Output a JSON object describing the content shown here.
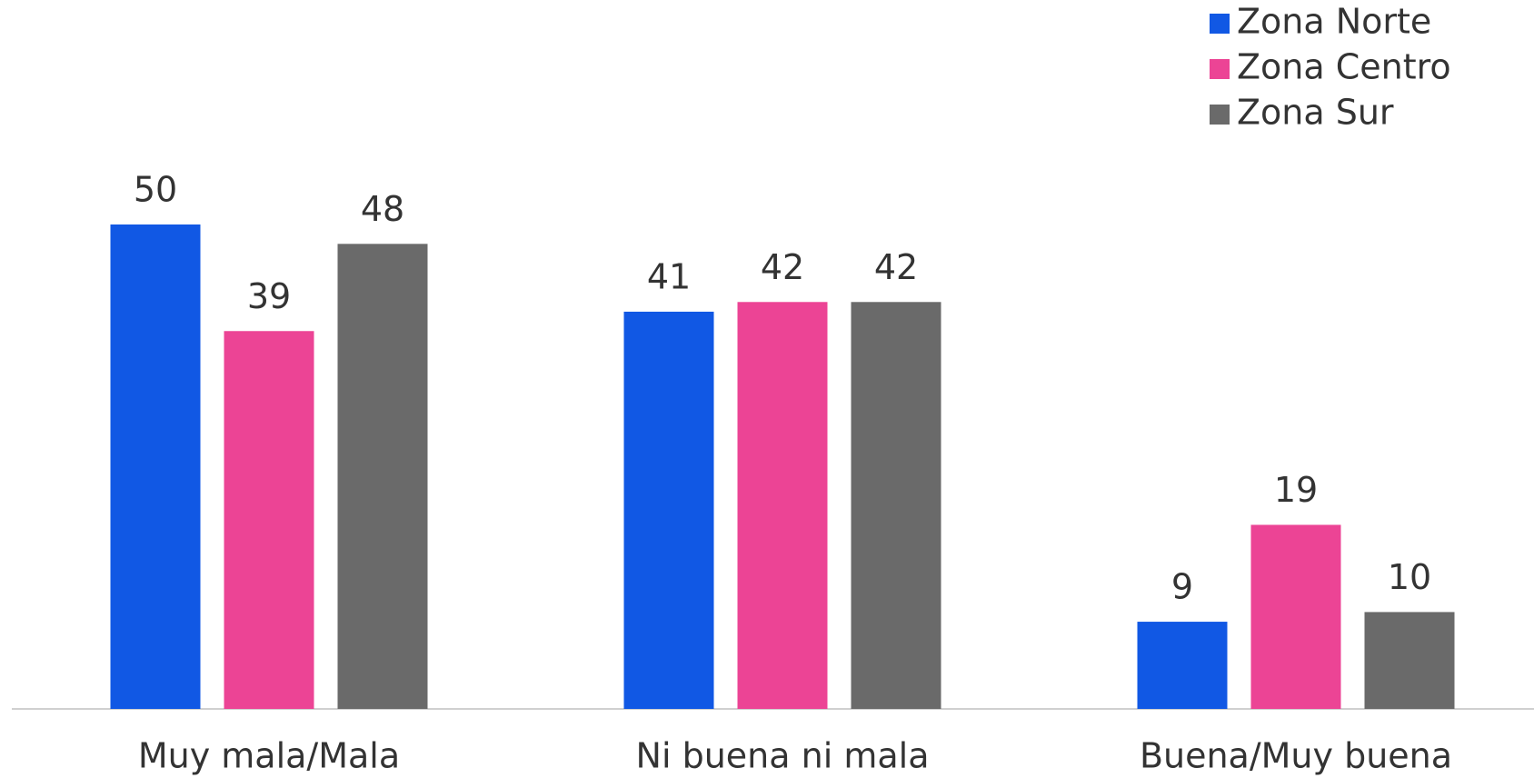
{
  "chart_data": {
    "type": "bar",
    "categories": [
      "Muy mala/Mala",
      "Ni buena ni mala",
      "Buena/Muy buena"
    ],
    "series": [
      {
        "name": "Zona Norte",
        "color": "#1158e4",
        "values": [
          50,
          41,
          9
        ]
      },
      {
        "name": "Zona Centro",
        "color": "#ec4495",
        "values": [
          39,
          42,
          19
        ]
      },
      {
        "name": "Zona Sur",
        "color": "#6a6a6a",
        "values": [
          48,
          42,
          10
        ]
      }
    ],
    "legend": "top-right"
  }
}
